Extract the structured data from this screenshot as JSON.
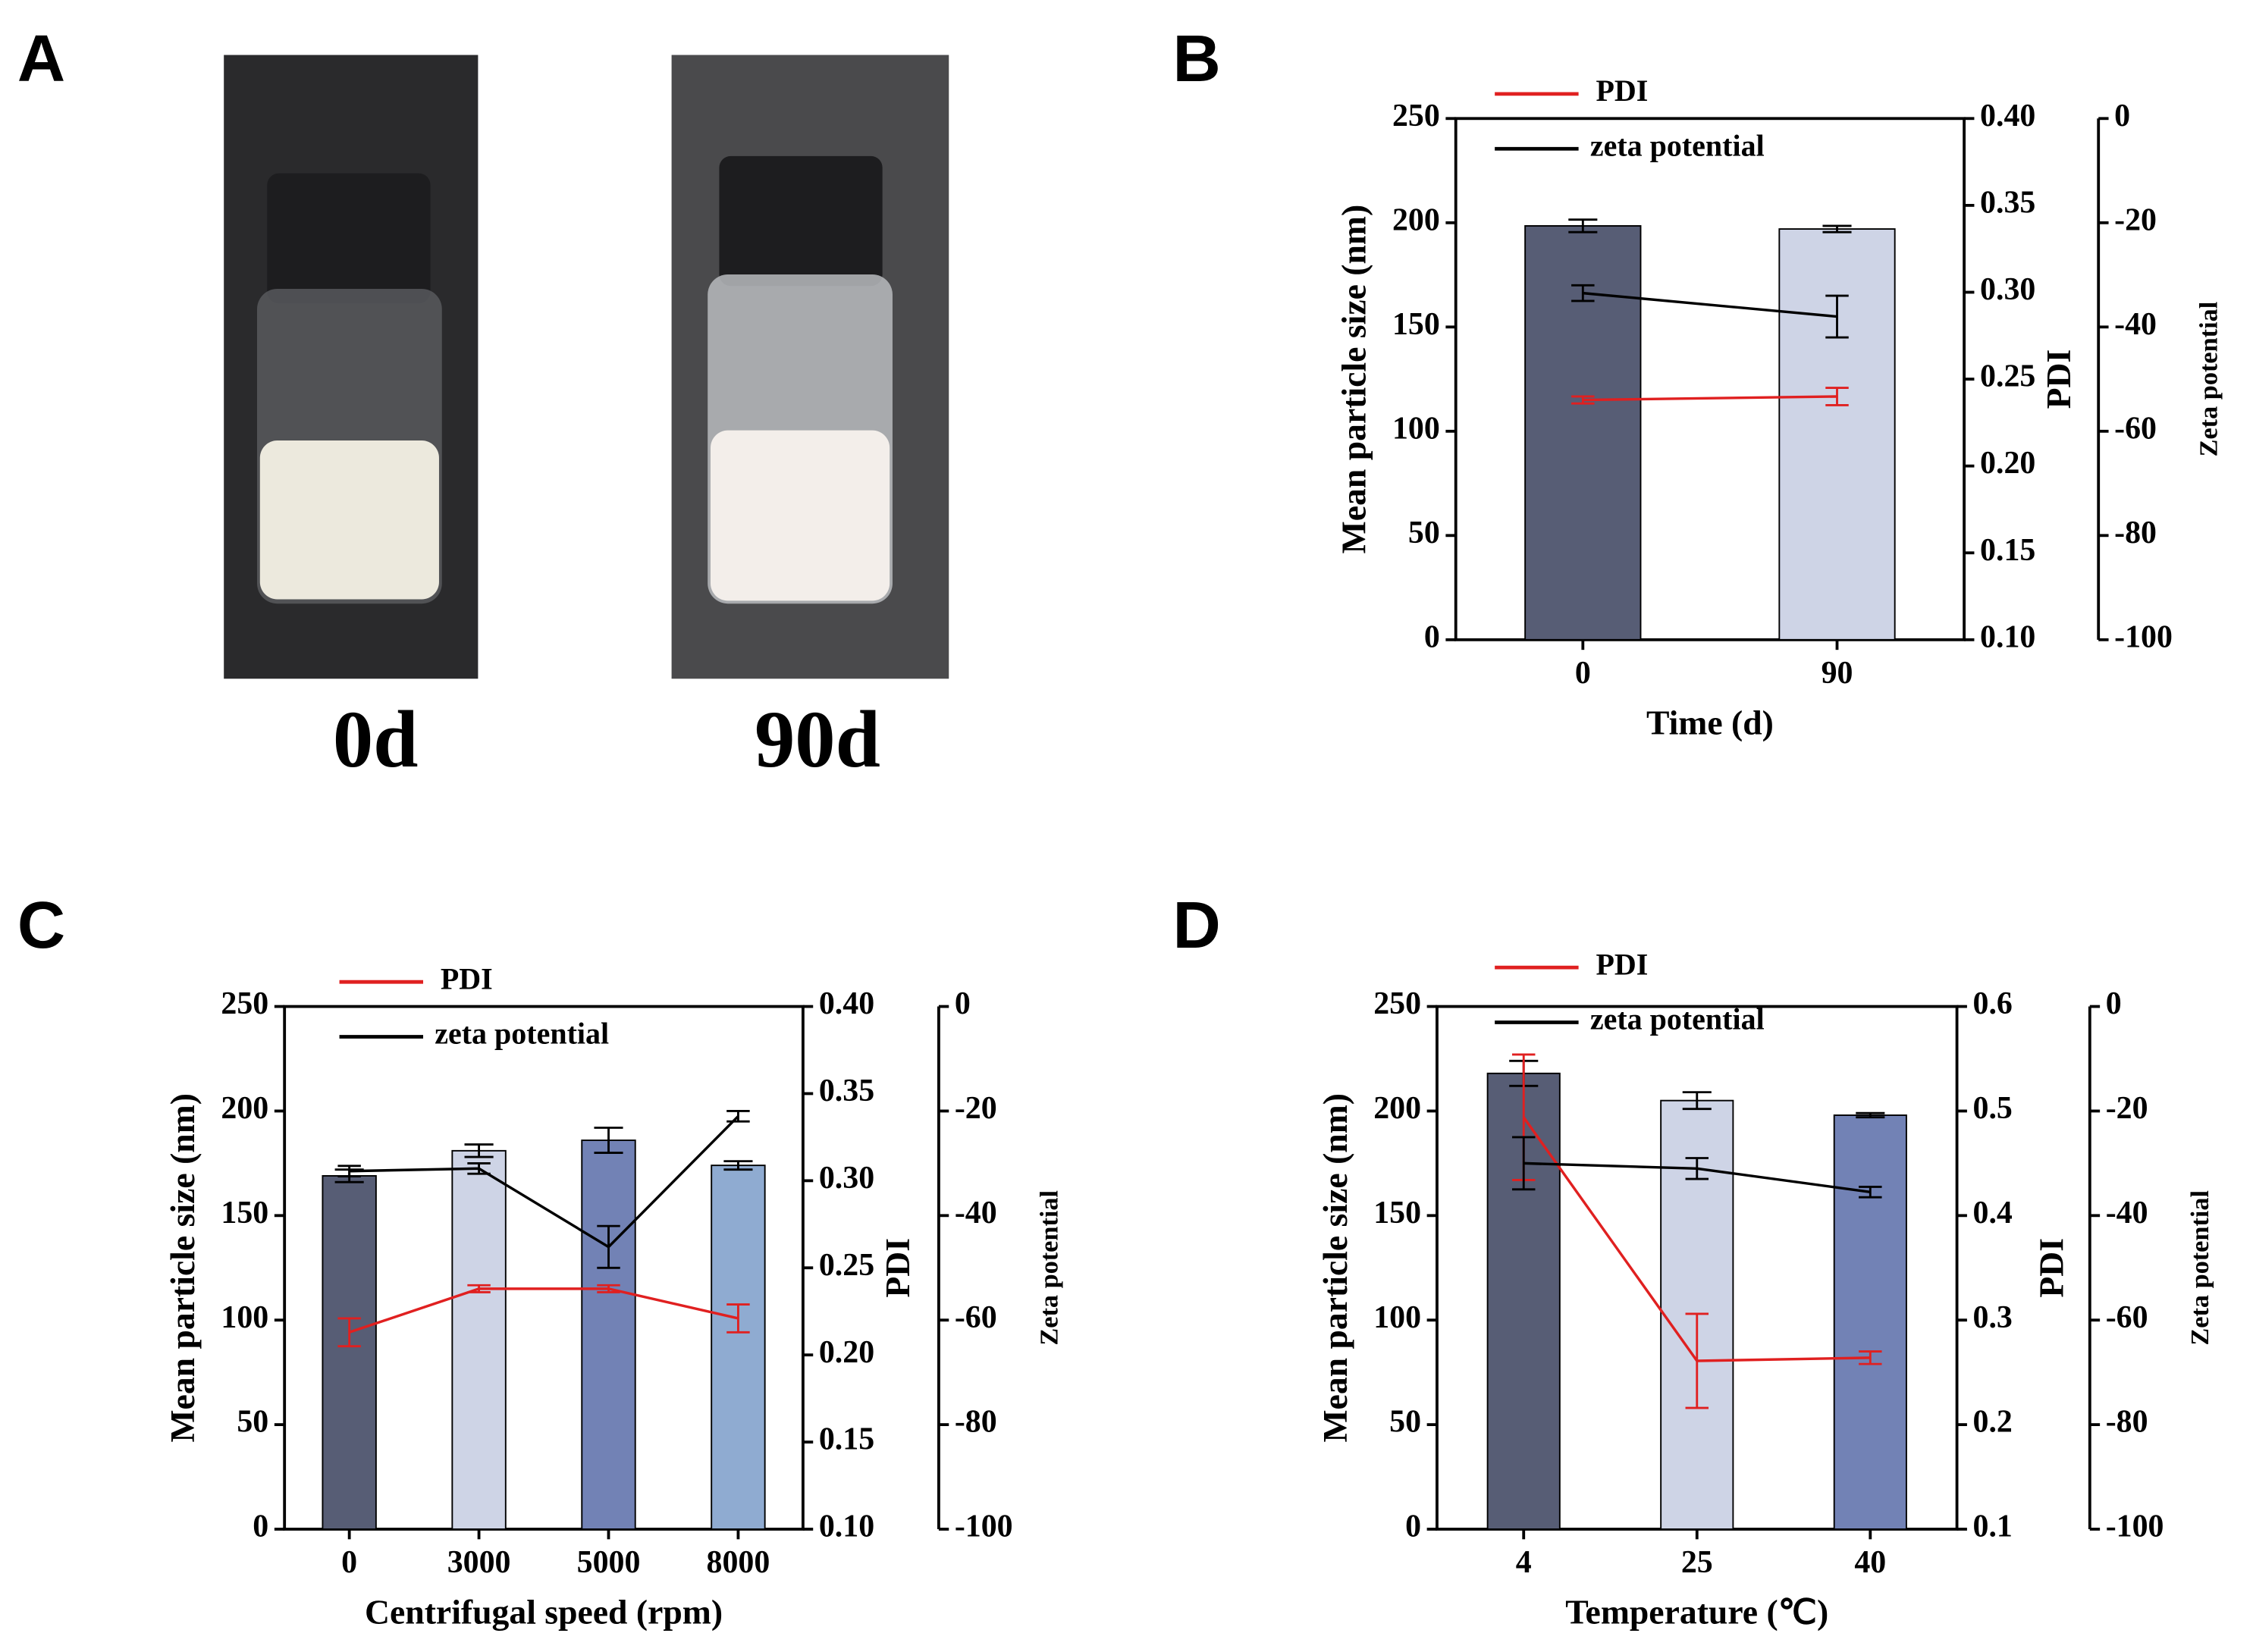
{
  "photos": {
    "panel": "A",
    "labels": [
      "0d",
      "90d"
    ]
  },
  "chart_data": [
    {
      "type": "bar",
      "panel": "B",
      "xlabel": "Time (d)",
      "ylabel": "Mean particle size (nm)",
      "y2label": "PDI",
      "y3label": "Zeta potential",
      "categories": [
        "0",
        "90"
      ],
      "values": [
        198.5,
        197
      ],
      "errors": [
        3,
        1.5
      ],
      "colors": [
        "#575d75",
        "#ced4e6"
      ],
      "ylim": [
        0,
        250
      ],
      "yticks": [
        0,
        50,
        100,
        150,
        200,
        250
      ],
      "y2lim": [
        0.1,
        0.4
      ],
      "y2ticks": [
        {
          "value": 0.1,
          "label": "0.10"
        },
        0.15,
        {
          "value": 0.2,
          "label": "0.20"
        },
        0.25,
        {
          "value": 0.3,
          "label": "0.30"
        },
        0.35,
        {
          "value": 0.4,
          "label": "0.40"
        }
      ],
      "y3lim": [
        -100,
        0
      ],
      "y3ticks": [
        -100,
        -80,
        -60,
        -40,
        -20,
        0
      ],
      "series": [
        {
          "name": "PDI",
          "color": "#e02020",
          "axis": "y2",
          "values": [
            0.238,
            0.24
          ],
          "errors": [
            0.002,
            0.005
          ]
        },
        {
          "name": "zeta potential",
          "color": "#000000",
          "axis": "y3",
          "values": [
            -33.5,
            -38
          ],
          "errors": [
            1.5,
            4
          ]
        }
      ]
    },
    {
      "type": "bar",
      "panel": "C",
      "xlabel": "Centrifugal speed (rpm)",
      "ylabel": "Mean particle size (nm)",
      "y2label": "PDI",
      "y3label": "Zeta potential",
      "categories": [
        "0",
        "3000",
        "5000",
        "8000"
      ],
      "values": [
        169,
        181,
        186,
        174
      ],
      "errors": [
        3,
        3,
        6,
        2
      ],
      "colors": [
        "#575d75",
        "#ced4e6",
        "#7282b5",
        "#8fabd1"
      ],
      "ylim": [
        0,
        250
      ],
      "yticks": [
        0,
        50,
        100,
        150,
        200,
        250
      ],
      "y2lim": [
        0.1,
        0.4
      ],
      "y2ticks": [
        {
          "value": 0.1,
          "label": "0.10"
        },
        0.15,
        {
          "value": 0.2,
          "label": "0.20"
        },
        0.25,
        {
          "value": 0.3,
          "label": "0.30"
        },
        0.35,
        {
          "value": 0.4,
          "label": "0.40"
        }
      ],
      "y3lim": [
        -100,
        0
      ],
      "y3ticks": [
        -100,
        -80,
        -60,
        -40,
        -20,
        0
      ],
      "series": [
        {
          "name": "PDI",
          "color": "#e02020",
          "axis": "y2",
          "values": [
            0.213,
            0.238,
            0.238,
            0.221
          ],
          "errors": [
            0.008,
            0.002,
            0.002,
            0.008
          ]
        },
        {
          "name": "zeta potential",
          "color": "#000000",
          "axis": "y3",
          "values": [
            -31.5,
            -31,
            -46,
            -21
          ],
          "errors": [
            1,
            1,
            4,
            1
          ]
        }
      ]
    },
    {
      "type": "bar",
      "panel": "D",
      "xlabel": "Temperature (℃)",
      "ylabel": "Mean particle size (nm)",
      "y2label": "PDI",
      "y3label": "Zeta potential",
      "categories": [
        "4",
        "25",
        "40"
      ],
      "values": [
        218,
        205,
        198
      ],
      "errors": [
        6,
        4,
        1
      ],
      "colors": [
        "#575d75",
        "#ced4e6",
        "#7282b5"
      ],
      "ylim": [
        0,
        250
      ],
      "yticks": [
        0,
        50,
        100,
        150,
        200,
        250
      ],
      "y2lim": [
        0.1,
        0.6
      ],
      "y2ticks": [
        0.1,
        0.2,
        0.3,
        0.4,
        0.5,
        0.6
      ],
      "y3lim": [
        -100,
        0
      ],
      "y3ticks": [
        -100,
        -80,
        -60,
        -40,
        -20,
        0
      ],
      "series": [
        {
          "name": "PDI",
          "color": "#e02020",
          "axis": "y2",
          "values": [
            0.494,
            0.261,
            0.264
          ],
          "errors": [
            0.06,
            0.045,
            0.006
          ]
        },
        {
          "name": "zeta potential",
          "color": "#000000",
          "axis": "y3",
          "values": [
            -30,
            -31,
            -35.5
          ],
          "errors": [
            5,
            2,
            1
          ]
        }
      ]
    }
  ]
}
